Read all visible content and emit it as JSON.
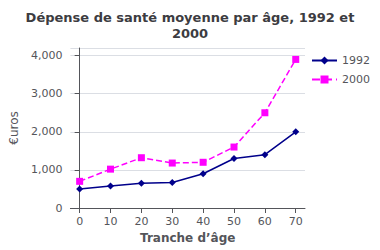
{
  "chart_data": {
    "type": "line",
    "title": "Dépense de santé moyenne par âge, 1992 et\n2000",
    "xlabel": "Tranche d’âge",
    "ylabel": "€uros",
    "x": [
      0,
      10,
      20,
      30,
      40,
      50,
      60,
      70
    ],
    "series": [
      {
        "name": "1992",
        "color": "#00008B",
        "marker": "diamond",
        "line_style": "solid",
        "values": [
          500,
          580,
          650,
          670,
          900,
          1300,
          1400,
          2000
        ]
      },
      {
        "name": "2000",
        "color": "#FF00FF",
        "marker": "square",
        "line_style": "dashed",
        "values": [
          700,
          1020,
          1320,
          1180,
          1200,
          1600,
          2500,
          3900
        ]
      }
    ],
    "xlim": [
      -3,
      73
    ],
    "xticks": [
      0,
      10,
      20,
      30,
      40,
      50,
      60,
      70
    ],
    "ylim": [
      0,
      4200
    ],
    "yticks": [
      0,
      1000,
      2000,
      3000,
      4000
    ],
    "grid": true,
    "legend": "right"
  }
}
